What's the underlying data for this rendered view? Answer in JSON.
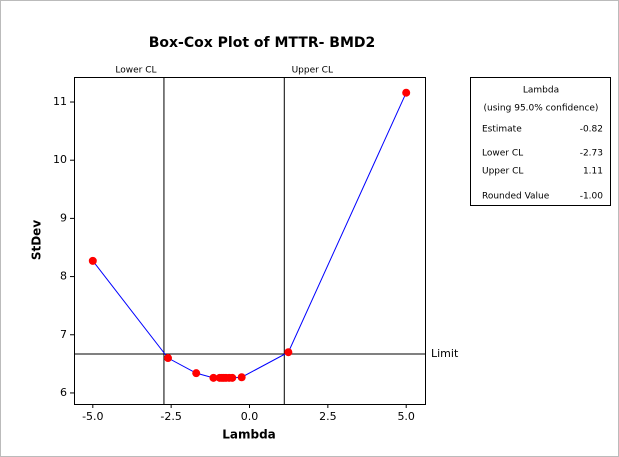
{
  "chart_data": {
    "type": "line",
    "title": "Box-Cox Plot of MTTR- BMD2",
    "xlabel": "Lambda",
    "ylabel": "StDev",
    "x": [
      -5,
      -2.6,
      -1.7,
      -1.15,
      -0.95,
      -0.88,
      -0.82,
      -0.75,
      -0.65,
      -0.55,
      -0.25,
      1.24,
      5
    ],
    "series": [
      {
        "name": "StDev",
        "color": "#0000ff",
        "marker_color": "#ff0000",
        "values": [
          8.27,
          6.6,
          6.34,
          6.26,
          6.26,
          6.26,
          6.26,
          6.26,
          6.26,
          6.26,
          6.27,
          6.7,
          11.16
        ]
      }
    ],
    "xlim": [
      -5.6,
      5.6
    ],
    "ylim": [
      5.81,
      11.43
    ],
    "xticks": [
      {
        "value": -5,
        "label": "-5.0"
      },
      {
        "value": -2.5,
        "label": "-2.5"
      },
      {
        "value": 0,
        "label": "0.0"
      },
      {
        "value": 2.5,
        "label": "2.5"
      },
      {
        "value": 5,
        "label": "5.0"
      }
    ],
    "yticks": [
      6,
      7,
      8,
      9,
      10,
      11
    ],
    "limit": 6.67,
    "limit_label": "Limit",
    "info_box": {
      "title": "Lambda",
      "subtitle": "(using 95.0% confidence)",
      "rows": [
        {
          "label": "Estimate",
          "value": -0.82
        },
        {
          "label": "Lower CL",
          "value": -2.73
        },
        {
          "label": "Upper CL",
          "value": 1.11
        },
        {
          "label": "Rounded Value",
          "value": -1,
          "value_label": "-1.00"
        }
      ]
    }
  }
}
